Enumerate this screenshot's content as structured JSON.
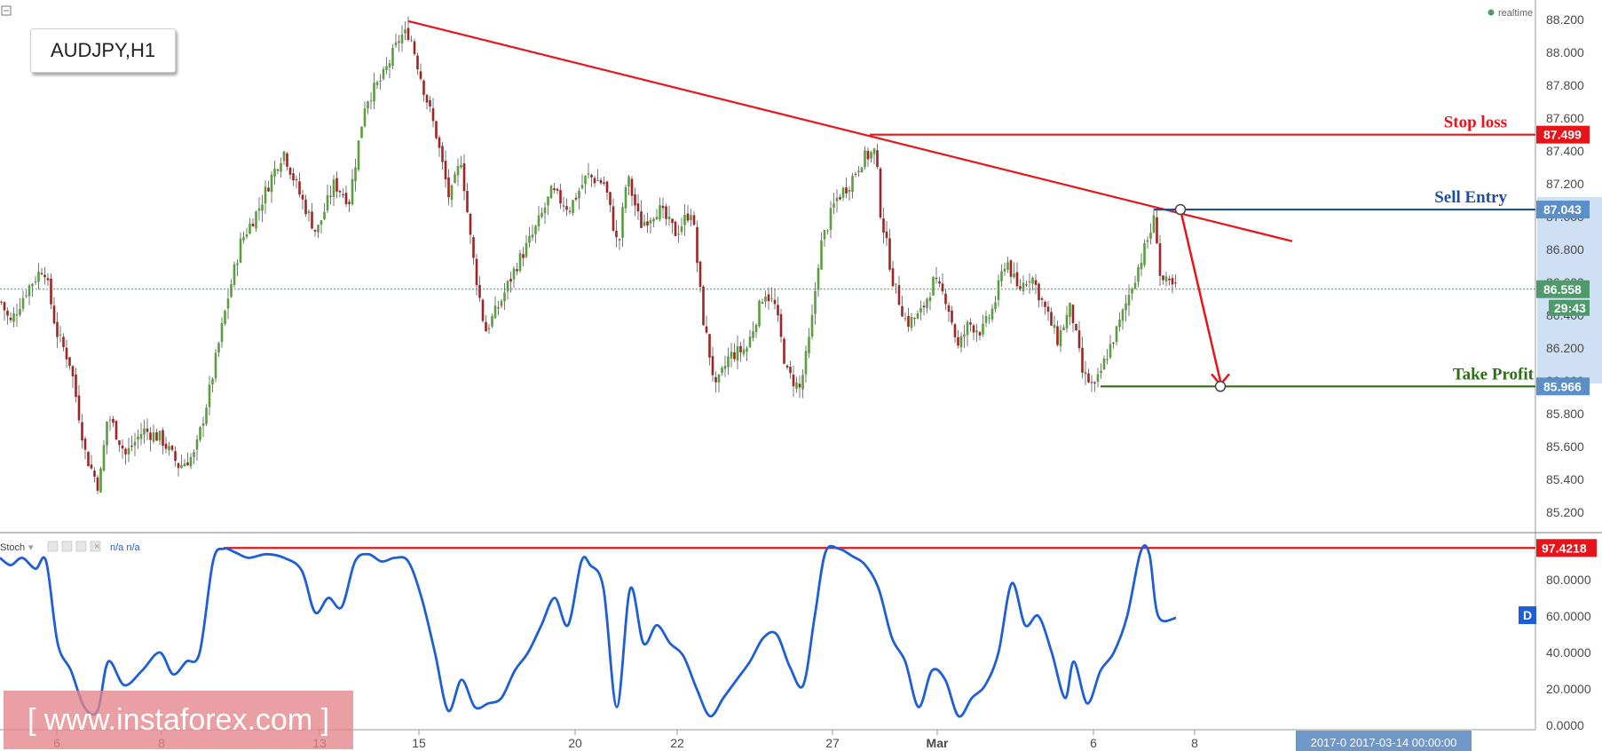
{
  "symbol": "AUDJPY,H1",
  "realtime_label": "realtime",
  "indicator": {
    "name": "Stoch",
    "params": "n/a n/a",
    "legend_badge": "D"
  },
  "watermark": "[ www.instaforex.com ]",
  "annotations": {
    "stop_loss": {
      "label": "Stop loss",
      "value": "87.499",
      "color": "#e8141a"
    },
    "sell_entry": {
      "label": "Sell Entry",
      "value": "87.043",
      "color": "#1f4e9e"
    },
    "take_profit": {
      "label": "Take Profit",
      "value": "85.966",
      "color": "#2e6e12"
    },
    "last_price": {
      "value": "86.558",
      "color": "#4f9a6a"
    },
    "countdown": "29:43",
    "stoch_level": {
      "value": "97.4218",
      "color": "#e8141a"
    }
  },
  "date_readout": "2017-0 2017-03-14 00:00:00",
  "colors": {
    "bull": "#5a9f3e",
    "bear": "#a02424",
    "stoch_line": "#1f5fd6",
    "trend": "#e8141a"
  },
  "chart_data": [
    {
      "type": "candlestick",
      "title": "AUDJPY,H1",
      "ylim": [
        85.06,
        88.3
      ],
      "y_ticks": [
        "88.200",
        "88.000",
        "87.800",
        "87.600",
        "87.400",
        "87.200",
        "87.000",
        "86.800",
        "86.600",
        "86.400",
        "86.200",
        "86.000",
        "85.800",
        "85.600",
        "85.400",
        "85.200"
      ],
      "x_ticks": [
        "6",
        "8",
        "13",
        "15",
        "20",
        "22",
        "27",
        "Mar",
        "6",
        "8"
      ],
      "close_path": [
        [
          0,
          86.48
        ],
        [
          10,
          86.35
        ],
        [
          28,
          86.55
        ],
        [
          48,
          86.7
        ],
        [
          62,
          86.3
        ],
        [
          78,
          86.1
        ],
        [
          95,
          85.55
        ],
        [
          110,
          85.35
        ],
        [
          120,
          85.8
        ],
        [
          140,
          85.55
        ],
        [
          160,
          85.7
        ],
        [
          180,
          85.65
        ],
        [
          200,
          85.48
        ],
        [
          218,
          85.55
        ],
        [
          235,
          85.95
        ],
        [
          255,
          86.5
        ],
        [
          270,
          86.85
        ],
        [
          290,
          87.05
        ],
        [
          305,
          87.25
        ],
        [
          318,
          87.4
        ],
        [
          335,
          87.15
        ],
        [
          355,
          86.9
        ],
        [
          375,
          87.2
        ],
        [
          392,
          87.1
        ],
        [
          410,
          87.7
        ],
        [
          430,
          87.85
        ],
        [
          450,
          88.1
        ],
        [
          460,
          88.12
        ],
        [
          475,
          87.8
        ],
        [
          490,
          87.5
        ],
        [
          505,
          87.1
        ],
        [
          518,
          87.35
        ],
        [
          530,
          86.8
        ],
        [
          545,
          86.3
        ],
        [
          560,
          86.45
        ],
        [
          580,
          86.7
        ],
        [
          600,
          86.9
        ],
        [
          620,
          87.15
        ],
        [
          640,
          87.05
        ],
        [
          660,
          87.25
        ],
        [
          680,
          87.2
        ],
        [
          695,
          86.8
        ],
        [
          705,
          87.25
        ],
        [
          720,
          86.95
        ],
        [
          740,
          87.05
        ],
        [
          760,
          86.9
        ],
        [
          778,
          87.05
        ],
        [
          790,
          86.4
        ],
        [
          805,
          85.95
        ],
        [
          820,
          86.15
        ],
        [
          840,
          86.2
        ],
        [
          860,
          86.55
        ],
        [
          872,
          86.45
        ],
        [
          885,
          86.05
        ],
        [
          900,
          85.95
        ],
        [
          912,
          86.3
        ],
        [
          922,
          86.8
        ],
        [
          940,
          87.1
        ],
        [
          955,
          87.2
        ],
        [
          970,
          87.35
        ],
        [
          985,
          87.4
        ],
        [
          990,
          87.05
        ],
        [
          1005,
          86.6
        ],
        [
          1020,
          86.35
        ],
        [
          1035,
          86.4
        ],
        [
          1050,
          86.6
        ],
        [
          1065,
          86.5
        ],
        [
          1078,
          86.2
        ],
        [
          1090,
          86.35
        ],
        [
          1105,
          86.3
        ],
        [
          1118,
          86.45
        ],
        [
          1132,
          86.75
        ],
        [
          1145,
          86.55
        ],
        [
          1160,
          86.65
        ],
        [
          1175,
          86.45
        ],
        [
          1190,
          86.25
        ],
        [
          1205,
          86.45
        ],
        [
          1218,
          86.05
        ],
        [
          1232,
          85.95
        ],
        [
          1245,
          86.15
        ],
        [
          1260,
          86.35
        ],
        [
          1275,
          86.6
        ],
        [
          1288,
          86.8
        ],
        [
          1300,
          87.0
        ],
        [
          1306,
          86.62
        ],
        [
          1315,
          86.58
        ],
        [
          1325,
          86.56
        ]
      ],
      "trend_lines": [
        {
          "from": [
            460,
            88.19
          ],
          "to": [
            1456,
            86.85
          ]
        }
      ],
      "stop_loss_line": {
        "from_x": 980,
        "value": 87.499
      },
      "sell_entry_line": {
        "from_x": 1300,
        "value": 87.043,
        "marker_x": 1330
      },
      "take_profit_line": {
        "from_x": 1240,
        "value": 85.966,
        "marker_x": 1375
      },
      "projection_arrow": {
        "from": [
          1330,
          87.043
        ],
        "to": [
          1375,
          85.966
        ]
      },
      "last_price": 86.558
    },
    {
      "type": "line",
      "title": "Stoch",
      "ylim": [
        0,
        100
      ],
      "y_ticks": [
        "80.0000",
        "60.0000",
        "40.0000",
        "20.0000",
        "0.0000"
      ],
      "level_line": {
        "from_x": 252,
        "value": 97.4218
      },
      "x": [
        0,
        12,
        25,
        40,
        52,
        65,
        80,
        95,
        110,
        122,
        140,
        160,
        180,
        195,
        210,
        225,
        240,
        252,
        265,
        280,
        300,
        320,
        340,
        355,
        370,
        385,
        400,
        415,
        430,
        445,
        460,
        475,
        490,
        505,
        520,
        535,
        550,
        565,
        580,
        595,
        610,
        625,
        640,
        655,
        665,
        680,
        695,
        710,
        725,
        740,
        755,
        770,
        785,
        800,
        815,
        830,
        845,
        860,
        875,
        890,
        905,
        918,
        930,
        945,
        960,
        975,
        990,
        1005,
        1020,
        1035,
        1050,
        1065,
        1080,
        1095,
        1110,
        1125,
        1140,
        1155,
        1170,
        1185,
        1200,
        1210,
        1225,
        1240,
        1255,
        1270,
        1285,
        1295,
        1305,
        1325
      ],
      "values": [
        92,
        88,
        92,
        86,
        90,
        45,
        30,
        10,
        8,
        35,
        22,
        30,
        40,
        28,
        35,
        40,
        90,
        97,
        95,
        92,
        94,
        92,
        85,
        62,
        70,
        65,
        90,
        94,
        90,
        92,
        90,
        70,
        40,
        8,
        25,
        10,
        12,
        15,
        30,
        40,
        55,
        70,
        55,
        90,
        88,
        75,
        10,
        75,
        45,
        55,
        45,
        38,
        20,
        5,
        15,
        25,
        35,
        48,
        50,
        32,
        22,
        60,
        95,
        97,
        93,
        88,
        75,
        48,
        35,
        10,
        30,
        25,
        5,
        15,
        22,
        40,
        78,
        55,
        60,
        40,
        15,
        35,
        12,
        30,
        40,
        60,
        95,
        94,
        60,
        59
      ]
    }
  ]
}
